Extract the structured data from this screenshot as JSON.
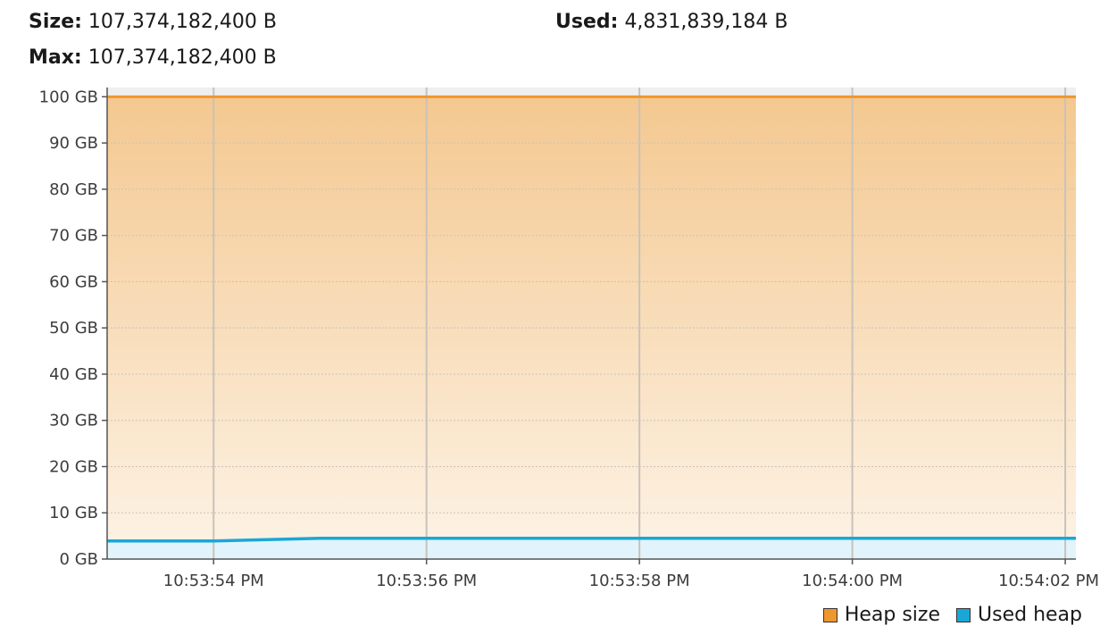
{
  "header": {
    "size_label": "Size:",
    "size_value": "107,374,182,400 B",
    "max_label": "Max:",
    "max_value": "107,374,182,400 B",
    "used_label": "Used:",
    "used_value": "4,831,839,184 B"
  },
  "chart_data": {
    "type": "area",
    "y_unit": "GB",
    "ylim": [
      0,
      102
    ],
    "y_ticks": [
      0,
      10,
      20,
      30,
      40,
      50,
      60,
      70,
      80,
      90,
      100
    ],
    "y_tick_labels": [
      "0 GB",
      "10 GB",
      "20 GB",
      "30 GB",
      "40 GB",
      "50 GB",
      "60 GB",
      "70 GB",
      "80 GB",
      "90 GB",
      "100 GB"
    ],
    "x_tick_labels": [
      "10:53:54 PM",
      "10:53:56 PM",
      "10:53:58 PM",
      "10:54:00 PM",
      "10:54:02 PM"
    ],
    "x_range": [
      "10:53:53.0 PM",
      "10:54:02.1 PM"
    ],
    "grid": true,
    "legend_position": "bottom-right",
    "series": [
      {
        "name": "Heap size",
        "color": "#f0962e",
        "x": [
          "10:53:53.0 PM",
          "10:53:54.0 PM",
          "10:53:55.0 PM",
          "10:53:56.0 PM",
          "10:53:58.0 PM",
          "10:54:00.0 PM",
          "10:54:02.1 PM"
        ],
        "values": [
          100,
          100,
          100,
          100,
          100,
          100,
          100
        ]
      },
      {
        "name": "Used heap",
        "color": "#1aa7d8",
        "x": [
          "10:53:53.0 PM",
          "10:53:54.0 PM",
          "10:53:55.0 PM",
          "10:53:56.0 PM",
          "10:53:58.0 PM",
          "10:54:00.0 PM",
          "10:54:02.1 PM"
        ],
        "values": [
          3.9,
          3.9,
          4.5,
          4.5,
          4.5,
          4.5,
          4.5
        ]
      }
    ]
  },
  "legend": {
    "heap_size_label": "Heap size",
    "used_heap_label": "Used heap",
    "heap_size_color": "#f0962e",
    "used_heap_color": "#1aa7d8"
  }
}
